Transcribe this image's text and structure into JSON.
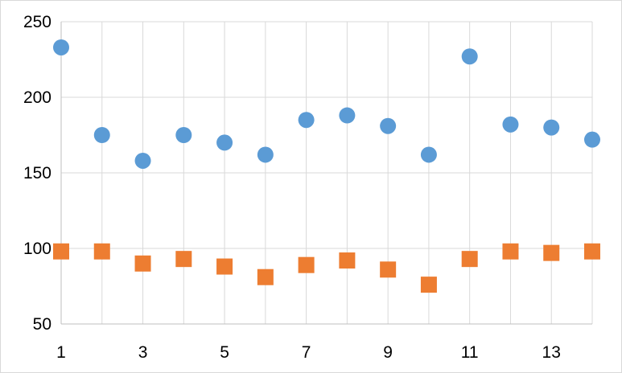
{
  "chart_data": {
    "type": "scatter",
    "title": "",
    "xlabel": "",
    "ylabel": "",
    "xlim": [
      1,
      14
    ],
    "ylim": [
      50,
      250
    ],
    "xticks": [
      "1",
      "3",
      "5",
      "7",
      "9",
      "11",
      "13"
    ],
    "yticks": [
      "50",
      "100",
      "150",
      "200",
      "250"
    ],
    "grid": true,
    "legend": "none",
    "x": [
      1,
      2,
      3,
      4,
      5,
      6,
      7,
      8,
      9,
      10,
      11,
      12,
      13,
      14
    ],
    "series": [
      {
        "marker": "circle",
        "color": "#5b9bd5",
        "values": [
          233,
          175,
          158,
          175,
          170,
          162,
          185,
          188,
          181,
          162,
          227,
          182,
          180,
          172
        ]
      },
      {
        "marker": "square",
        "color": "#ed7d31",
        "values": [
          98,
          98,
          90,
          93,
          88,
          81,
          89,
          92,
          86,
          76,
          93,
          98,
          97,
          98
        ]
      }
    ]
  }
}
